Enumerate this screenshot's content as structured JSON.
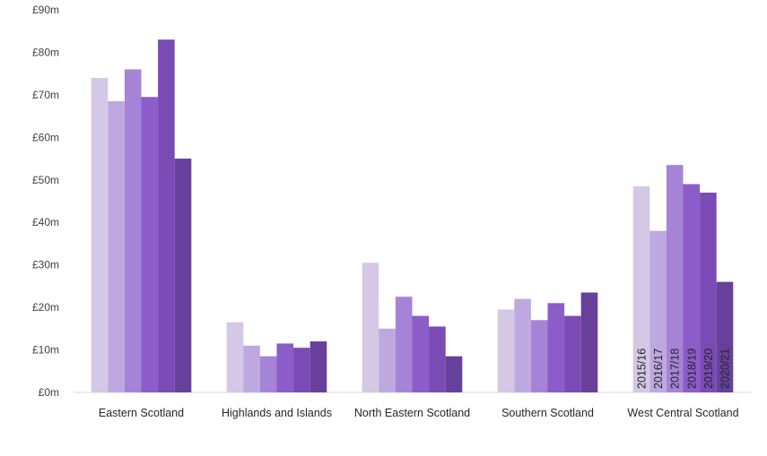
{
  "chart_data": {
    "type": "bar",
    "categories": [
      "Eastern Scotland",
      "Highlands and Islands",
      "North Eastern Scotland",
      "Southern Scotland",
      "West Central Scotland"
    ],
    "series": [
      {
        "name": "2015/16",
        "color": "#d4c8e6",
        "values": [
          74,
          16.5,
          30.5,
          19.5,
          48.5
        ]
      },
      {
        "name": "2016/17",
        "color": "#bda9df",
        "values": [
          68.5,
          11,
          15,
          22,
          38
        ]
      },
      {
        "name": "2017/18",
        "color": "#a583d6",
        "values": [
          76,
          8.5,
          22.5,
          17,
          53.5
        ]
      },
      {
        "name": "2018/19",
        "color": "#8c5cc9",
        "values": [
          69.5,
          11.5,
          18,
          21,
          49
        ]
      },
      {
        "name": "2019/20",
        "color": "#7a4ab5",
        "values": [
          83,
          10.5,
          15.5,
          18,
          47
        ]
      },
      {
        "name": "2020/21",
        "color": "#66409a",
        "values": [
          55,
          12,
          8.5,
          23.5,
          26
        ]
      }
    ],
    "yticks": [
      "£0m",
      "£10m",
      "£20m",
      "£30m",
      "£40m",
      "£50m",
      "£60m",
      "£70m",
      "£80m",
      "£90m"
    ],
    "ylim": [
      0,
      90
    ],
    "series_labels_category_index": 4,
    "grid": false
  }
}
